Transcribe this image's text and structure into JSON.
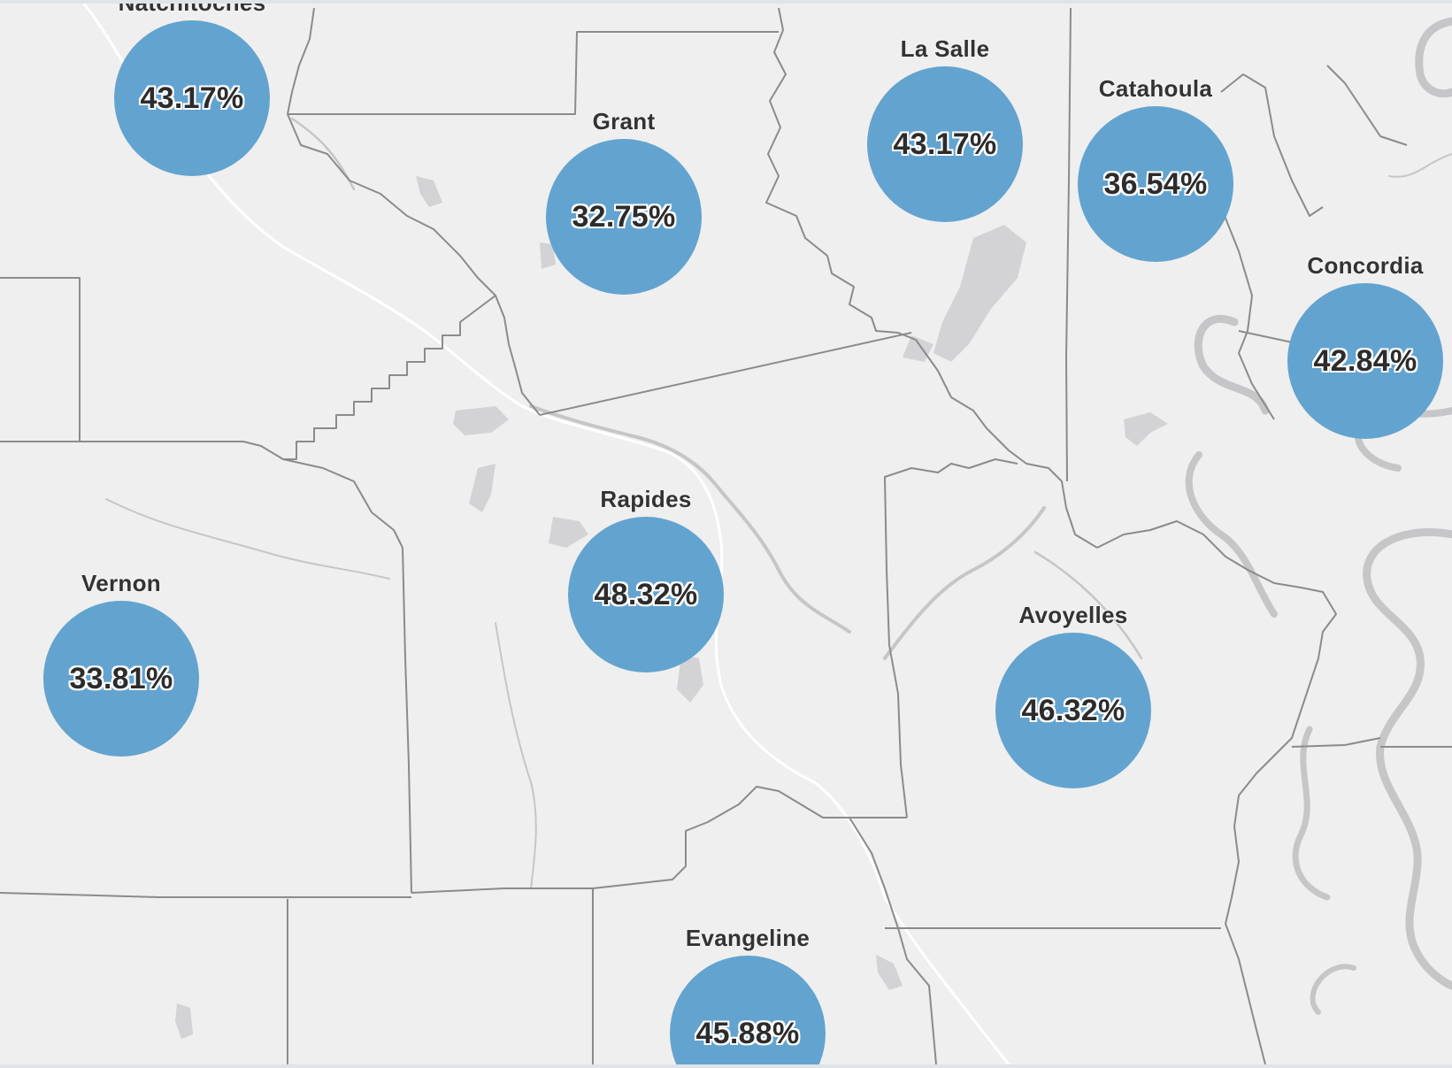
{
  "map": {
    "parishes": [
      {
        "id": "natchitoches",
        "name": "Natchitoches",
        "value": "43.17%"
      },
      {
        "id": "grant",
        "name": "Grant",
        "value": "32.75%"
      },
      {
        "id": "la-salle",
        "name": "La Salle",
        "value": "43.17%"
      },
      {
        "id": "catahoula",
        "name": "Catahoula",
        "value": "36.54%"
      },
      {
        "id": "concordia",
        "name": "Concordia",
        "value": "42.84%"
      },
      {
        "id": "rapides",
        "name": "Rapides",
        "value": "48.32%"
      },
      {
        "id": "vernon",
        "name": "Vernon",
        "value": "33.81%"
      },
      {
        "id": "avoyelles",
        "name": "Avoyelles",
        "value": "46.32%"
      },
      {
        "id": "evangeline",
        "name": "Evangeline",
        "value": "45.88%"
      }
    ],
    "colors": {
      "bubble": "#63a3cf",
      "land": "#efefef",
      "water": "#d3d3d5",
      "boundary": "#8b8b8b",
      "road": "#ffffff"
    }
  }
}
